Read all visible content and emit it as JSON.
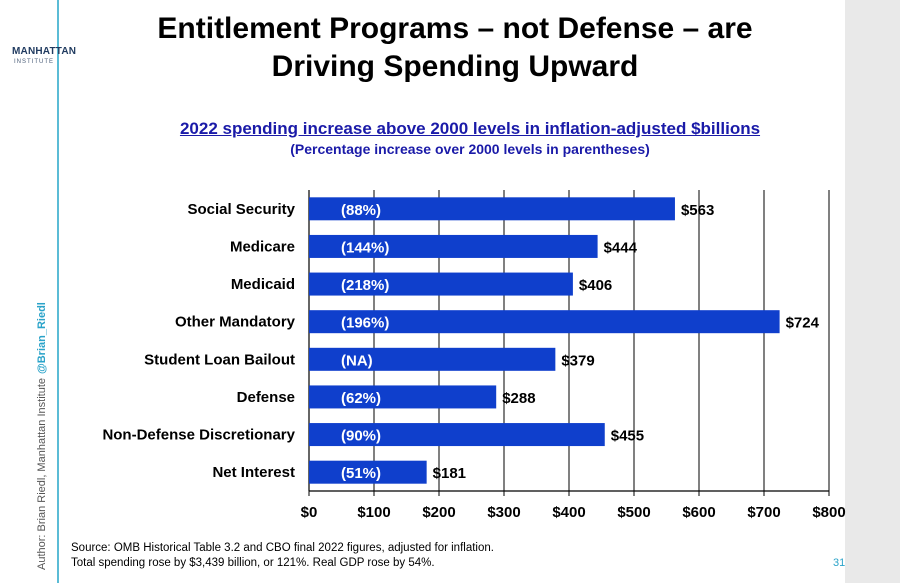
{
  "logo": {
    "name": "MANHATTAN",
    "sub": "INSTITUTE"
  },
  "author": {
    "text": "Author: Brian Riedl, Manhattan Institute",
    "handle": "@Brian_Riedl"
  },
  "title_line1": "Entitlement Programs – not Defense – are",
  "title_line2": "Driving Spending Upward",
  "source_line1": "Source: OMB Historical Table 3.2 and CBO final 2022 figures, adjusted for inflation.",
  "source_line2": "Total spending rose by $3,439 billion, or 121%. Real GDP rose by 54%.",
  "page_number": "31",
  "colors": {
    "bar": "#0f3fcc",
    "accent": "#2aa3c9",
    "subtitle": "#1a1aa8"
  },
  "chart_data": {
    "type": "bar",
    "orientation": "horizontal",
    "title": "2022 spending increase above 2000 levels in inflation-adjusted $billions",
    "subtitle": "(Percentage increase over 2000 levels in parentheses)",
    "categories": [
      "Social Security",
      "Medicare",
      "Medicaid",
      "Other Mandatory",
      "Student Loan Bailout",
      "Defense",
      "Non-Defense Discretionary",
      "Net Interest"
    ],
    "values": [
      563,
      444,
      406,
      724,
      379,
      288,
      455,
      181
    ],
    "value_labels": [
      "$563",
      "$444",
      "$406",
      "$724",
      "$379",
      "$288",
      "$455",
      "$181"
    ],
    "pct_labels": [
      "(88%)",
      "(144%)",
      "(218%)",
      "(196%)",
      "(NA)",
      "(62%)",
      "(90%)",
      "(51%)"
    ],
    "xlim": [
      0,
      800
    ],
    "xticks": [
      0,
      100,
      200,
      300,
      400,
      500,
      600,
      700,
      800
    ],
    "xtick_labels": [
      "$0",
      "$100",
      "$200",
      "$300",
      "$400",
      "$500",
      "$600",
      "$700",
      "$800"
    ],
    "grid": true
  }
}
